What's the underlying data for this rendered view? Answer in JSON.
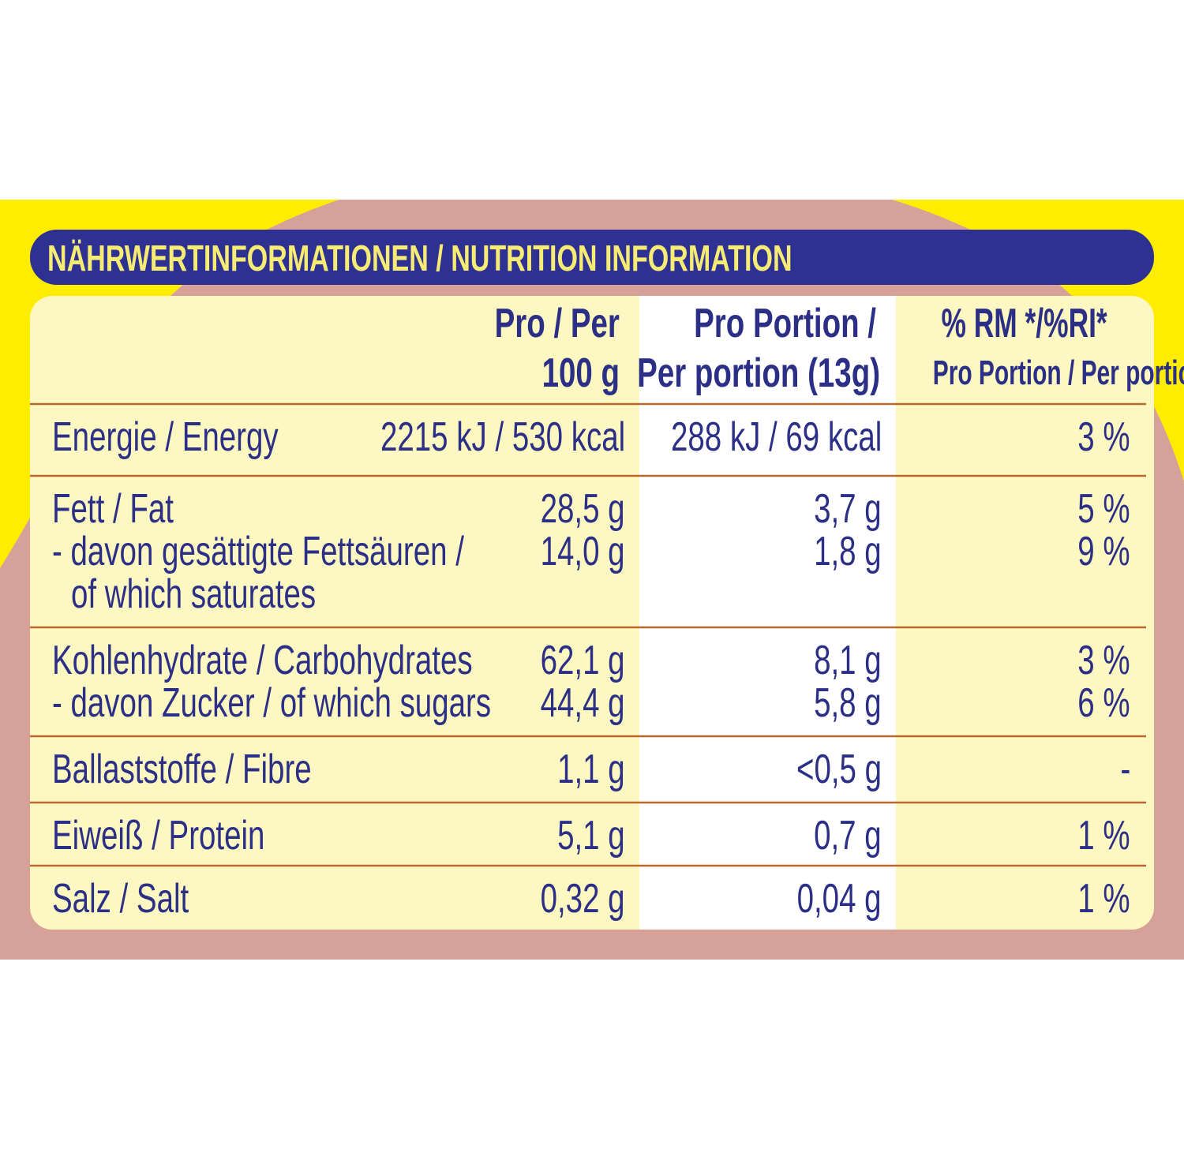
{
  "title": "NÄHRWERTINFORMATIONEN / NUTRITION INFORMATION",
  "table": {
    "header": {
      "per_100g": [
        "Pro / Per",
        "100 g"
      ],
      "per_portion": [
        "Pro Portion /",
        "Per portion (13g)"
      ],
      "ri": [
        "% RM */%RI*",
        "Pro Portion / Per portion"
      ]
    },
    "rows": [
      {
        "lines": [
          {
            "label": "Energie / Energy",
            "per_100g": "2215 kJ / 530 kcal",
            "per_portion": "288 kJ / 69 kcal",
            "ri": "3 %"
          }
        ]
      },
      {
        "lines": [
          {
            "label": "Fett / Fat",
            "per_100g": "28,5 g",
            "per_portion": "3,7 g",
            "ri": "5 %"
          },
          {
            "label": "- davon gesättigte Fettsäuren /",
            "per_100g": "14,0 g",
            "per_portion": "1,8 g",
            "ri": "9 %"
          },
          {
            "label": "of which saturates"
          }
        ]
      },
      {
        "lines": [
          {
            "label": "Kohlenhydrate / Carbohydrates",
            "per_100g": "62,1 g",
            "per_portion": "8,1 g",
            "ri": "3 %"
          },
          {
            "label": "- davon Zucker / of which sugars",
            "per_100g": "44,4 g",
            "per_portion": "5,8 g",
            "ri": "6 %"
          }
        ]
      },
      {
        "lines": [
          {
            "label": "Ballaststoffe / Fibre",
            "per_100g": "1,1 g",
            "per_portion": "<0,5 g",
            "ri": "-"
          }
        ]
      },
      {
        "lines": [
          {
            "label": "Eiweiß / Protein",
            "per_100g": "5,1 g",
            "per_portion": "0,7 g",
            "ri": "1 %"
          }
        ]
      },
      {
        "lines": [
          {
            "label": "Salz / Salt",
            "per_100g": "0,32 g",
            "per_portion": "0,04 g",
            "ri": "1 %"
          }
        ]
      }
    ]
  }
}
